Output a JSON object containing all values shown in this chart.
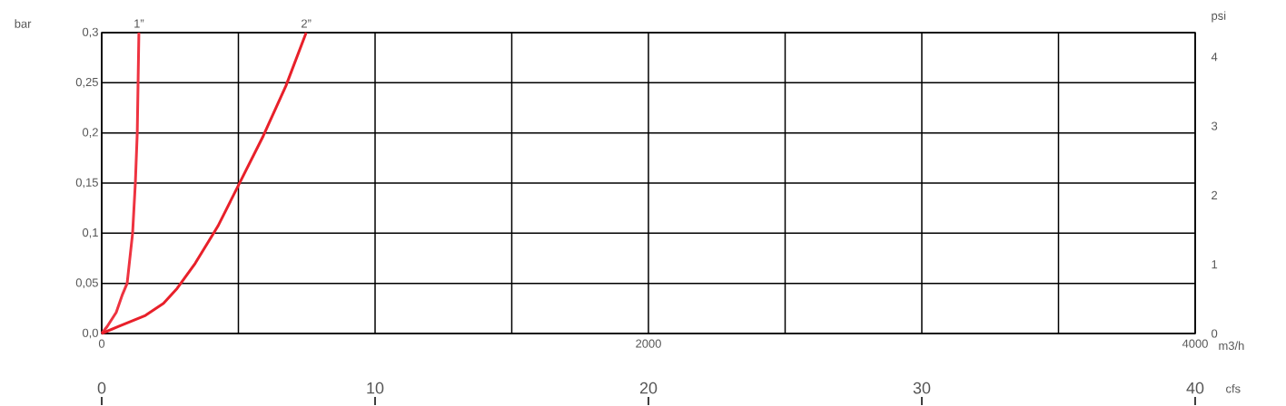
{
  "chart_data": {
    "type": "line",
    "xlabel": "m3/h",
    "ylabel": "bar",
    "y2label": "psi",
    "x2label": "cfs",
    "xlim": [
      0,
      4000
    ],
    "xticks": [
      0,
      {
        "value": 500,
        "label": null
      },
      {
        "value": 1000,
        "label": null
      },
      {
        "value": 1500,
        "label": null
      },
      2000,
      {
        "value": 2500,
        "label": null
      },
      {
        "value": 3000,
        "label": null
      },
      {
        "value": 3500,
        "label": null
      },
      4000
    ],
    "ylim": [
      0,
      0.3
    ],
    "yticks": [
      {
        "value": 0,
        "label": "0,0"
      },
      {
        "value": 0.05,
        "label": "0,05"
      },
      {
        "value": 0.1,
        "label": "0,1"
      },
      {
        "value": 0.15,
        "label": "0,15"
      },
      {
        "value": 0.2,
        "label": "0,2"
      },
      {
        "value": 0.25,
        "label": "0,25"
      },
      {
        "value": 0.3,
        "label": "0,3"
      }
    ],
    "y2lim": [
      0,
      4.35
    ],
    "y2ticks": [
      0,
      1,
      2,
      3,
      4
    ],
    "x2lim": [
      0,
      40
    ],
    "x2ticks": [
      0,
      10,
      20,
      30,
      40
    ],
    "grid": true,
    "marker": "none",
    "line_style": "solid",
    "series": [
      {
        "name": "1”",
        "color": "#ee3340",
        "x": [
          0,
          20,
          53,
          76,
          93,
          113,
          123,
          130,
          133,
          136
        ],
        "values": [
          0,
          0.007,
          0.021,
          0.039,
          0.05,
          0.1,
          0.15,
          0.2,
          0.25,
          0.3
        ]
      },
      {
        "name": "2”",
        "color": "#e8202a",
        "x": [
          0,
          60,
          160,
          226,
          276,
          342,
          425,
          508,
          591,
          674,
          748
        ],
        "values": [
          0,
          0.007,
          0.018,
          0.03,
          0.045,
          0.07,
          0.107,
          0.152,
          0.197,
          0.247,
          0.3
        ]
      }
    ]
  }
}
